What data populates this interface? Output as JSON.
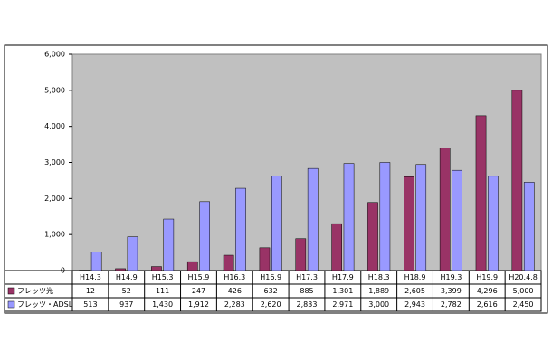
{
  "chart_data": {
    "type": "bar",
    "categories": [
      "H14.3",
      "H14.9",
      "H15.3",
      "H15.9",
      "H16.3",
      "H16.9",
      "H17.3",
      "H17.9",
      "H18.3",
      "H18.9",
      "H19.3",
      "H19.9",
      "H20.4.8"
    ],
    "series": [
      {
        "name": "フレッツ光",
        "color": "#993366",
        "values": [
          12,
          52,
          111,
          247,
          426,
          632,
          885,
          1301,
          1889,
          2605,
          3399,
          4296,
          5000
        ],
        "value_labels": [
          "12",
          "52",
          "111",
          "247",
          "426",
          "632",
          "885",
          "1,301",
          "1,889",
          "2,605",
          "3,399",
          "4,296",
          "5,000"
        ]
      },
      {
        "name": "フレッツ・ADSL",
        "color": "#9999ff",
        "values": [
          513,
          937,
          1430,
          1912,
          2283,
          2620,
          2833,
          2971,
          3000,
          2943,
          2782,
          2616,
          2450
        ],
        "value_labels": [
          "513",
          "937",
          "1,430",
          "1,912",
          "2,283",
          "2,620",
          "2,833",
          "2,971",
          "3,000",
          "2,943",
          "2,782",
          "2,616",
          "2,450"
        ]
      }
    ],
    "ylim": [
      0,
      6000
    ],
    "yticks": [
      0,
      {
        "value": 1000,
        "label": "1,000"
      },
      {
        "value": 2000,
        "label": "2,000"
      },
      {
        "value": 3000,
        "label": "3,000"
      },
      {
        "value": 4000,
        "label": "4,000"
      },
      {
        "value": 5000,
        "label": "5,000"
      },
      {
        "value": 6000,
        "label": "6,000"
      }
    ],
    "plot_background": "#c0c0c0"
  }
}
